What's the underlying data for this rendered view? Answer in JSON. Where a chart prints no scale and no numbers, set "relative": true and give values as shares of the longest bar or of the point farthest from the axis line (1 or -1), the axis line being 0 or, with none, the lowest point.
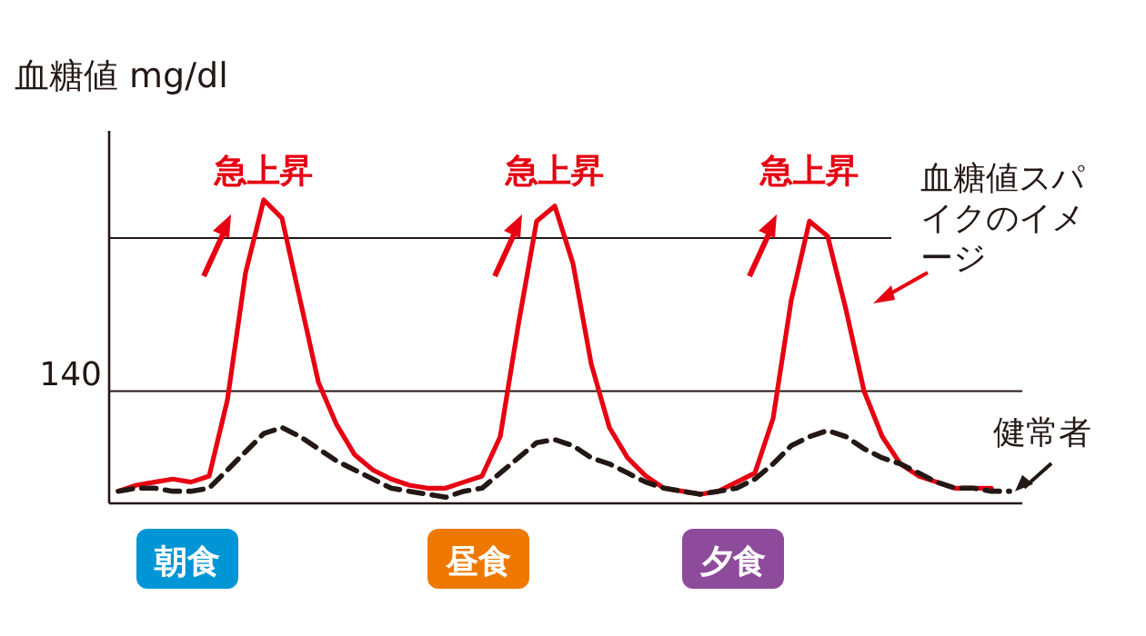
{
  "chart_data": {
    "type": "line",
    "relative": true,
    "ylabel": "血糖値 mg/dl",
    "categories": [
      null,
      null,
      null,
      null,
      null,
      null,
      null,
      null,
      null,
      null,
      null,
      null,
      null,
      null,
      null,
      null,
      null,
      null,
      null,
      null,
      null,
      null,
      null,
      null,
      null,
      null,
      null,
      null,
      null,
      null,
      null,
      null,
      null,
      null,
      null,
      null,
      null,
      null,
      null,
      null,
      null,
      null,
      null,
      null,
      null,
      null,
      null,
      null,
      null,
      null
    ],
    "series": [
      {
        "name": "血糖値スパイクのイメージ",
        "color": "#e60012",
        "line_style": "solid",
        "values": [
          0.04,
          0.06,
          0.07,
          0.08,
          0.07,
          0.09,
          0.34,
          0.76,
          1,
          0.94,
          0.67,
          0.4,
          0.26,
          0.16,
          0.11,
          0.08,
          0.06,
          0.05,
          0.05,
          0.07,
          0.09,
          0.22,
          0.59,
          0.93,
          0.98,
          0.79,
          0.46,
          0.25,
          0.15,
          0.09,
          0.05,
          0.04,
          0.03,
          0.04,
          0.07,
          0.1,
          0.28,
          0.67,
          0.93,
          0.88,
          0.64,
          0.37,
          0.22,
          0.13,
          0.09,
          0.07,
          0.05,
          0.05,
          0.05,
          null
        ]
      },
      {
        "name": "健常者",
        "color": "#231815",
        "line_style": "dashed",
        "values": [
          0.04,
          0.05,
          0.05,
          0.04,
          0.04,
          0.05,
          0.11,
          0.17,
          0.23,
          0.25,
          0.22,
          0.18,
          0.14,
          0.11,
          0.08,
          0.05,
          0.04,
          0.03,
          0.02,
          0.04,
          0.05,
          0.1,
          0.15,
          0.2,
          0.21,
          0.19,
          0.15,
          0.13,
          0.1,
          0.07,
          0.05,
          0.04,
          0.03,
          0.04,
          0.05,
          0.08,
          0.13,
          0.19,
          0.22,
          0.24,
          0.22,
          0.18,
          0.15,
          0.13,
          0.1,
          0.07,
          0.05,
          0.05,
          0.04,
          0.04
        ]
      }
    ],
    "ref_lines": [
      {
        "axis": "y",
        "value": 0.874,
        "color": "#231815"
      },
      {
        "axis": "y",
        "value": 0.37,
        "color": "#231815"
      }
    ],
    "annotations": [
      "急上昇",
      "急上昇",
      "急上昇",
      "朝食",
      "昼食",
      "夕食",
      "140"
    ],
    "legend": false,
    "grid": false,
    "marker": "none"
  }
}
